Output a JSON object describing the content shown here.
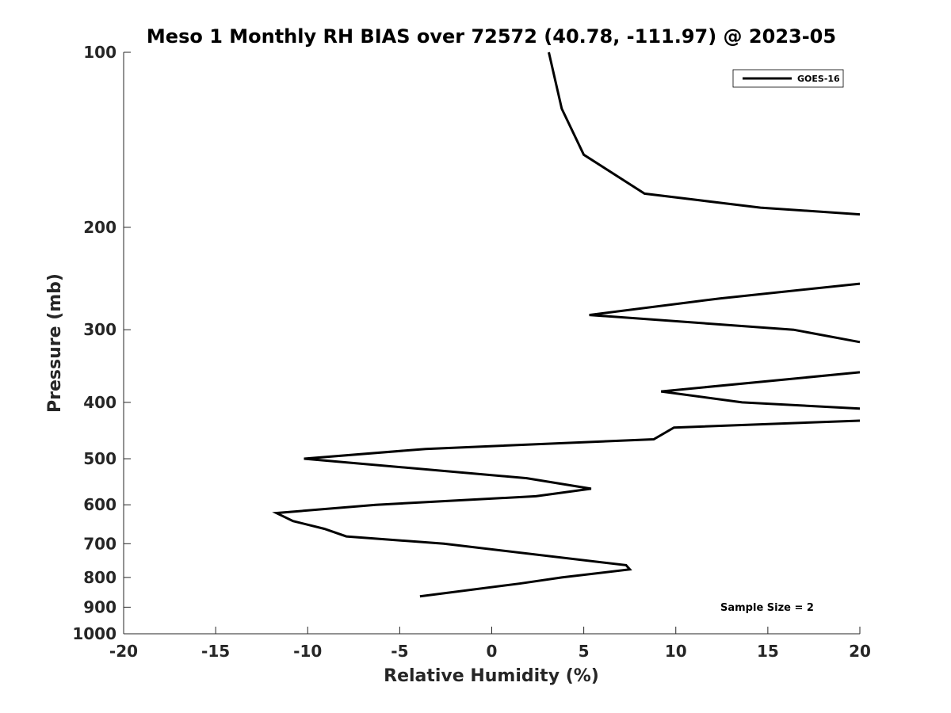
{
  "chart_data": {
    "type": "line",
    "title": "Meso 1 Monthly RH BIAS over 72572 (40.78, -111.97) @ 2023-05",
    "xlabel": "Relative Humidity (%)",
    "ylabel": "Pressure (mb)",
    "xlim": [
      -20,
      20
    ],
    "ylim": [
      100,
      1000
    ],
    "y_scale": "log",
    "y_reversed": true,
    "x_ticks": [
      -20,
      -15,
      -10,
      -5,
      0,
      5,
      10,
      15,
      20
    ],
    "x_tick_labels": [
      "-20",
      "-15",
      "-10",
      "-5",
      "0",
      "5",
      "10",
      "15",
      "20"
    ],
    "y_ticks": [
      100,
      200,
      300,
      400,
      500,
      600,
      700,
      800,
      900,
      1000
    ],
    "y_tick_labels": [
      "100",
      "200",
      "300",
      "400",
      "500",
      "600",
      "700",
      "800",
      "900",
      "1000"
    ],
    "grid": false,
    "legend_position": "top-right",
    "annotation": "Sample Size = 2",
    "series": [
      {
        "name": "GOES-16",
        "color": "#000000",
        "segments": [
          {
            "x": [
              3.1,
              3.8,
              5.0,
              8.3,
              14.6,
              20.0
            ],
            "y": [
              100,
              125,
              150,
              175,
              185,
              190
            ]
          },
          {
            "x": [
              20.0,
              12.4,
              5.3,
              16.4,
              20.0
            ],
            "y": [
              250,
              265,
              283,
              300,
              315
            ]
          },
          {
            "x": [
              20.0,
              9.2,
              13.6,
              20.0
            ],
            "y": [
              355,
              383,
              400,
              410
            ]
          },
          {
            "x": [
              20.0,
              9.9,
              8.8,
              -3.6,
              -10.2,
              1.9,
              5.4,
              2.4,
              -6.3,
              -11.7,
              -10.8,
              -9.1,
              -7.9,
              -2.6,
              7.3,
              7.5,
              3.8,
              1.5,
              -3.9
            ],
            "y": [
              430,
              442,
              463,
              481,
              500,
              540,
              563,
              580,
              600,
              620,
              640,
              660,
              680,
              700,
              762,
              775,
              800,
              820,
              862
            ]
          }
        ]
      }
    ]
  }
}
